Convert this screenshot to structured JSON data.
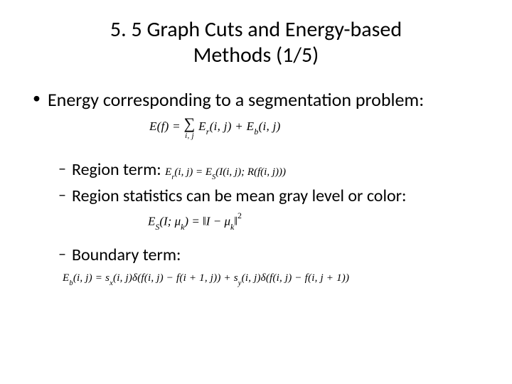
{
  "title_line1": "5. 5 Graph Cuts and Energy-based",
  "title_line2": "Methods (1/5)",
  "bullet1": "Energy corresponding to a segmentation problem:",
  "eq1_lhs": "E(f) =",
  "eq1_rhs": "E",
  "eq1_r": "r",
  "eq1_args": "(i, j) + E",
  "eq1_b": "b",
  "eq1_end": "(i, j)",
  "eq1_subscript": "i, j",
  "bullet2a": "Region term:",
  "eq2a_inline": "E",
  "eq2a_r": "r",
  "eq2a_mid": "(i, j) = E",
  "eq2a_S": "S",
  "eq2a_end": "(I(i, j); R(f(i, j)))",
  "bullet2b": "Region statistics can be mean gray level or color:",
  "eq2b_lhs": "E",
  "eq2b_S": "S",
  "eq2b_mid": "(I; μ",
  "eq2b_k": "k",
  "eq2b_eq": ") = ‖I − μ",
  "eq2b_k2": "k",
  "eq2b_end": "‖",
  "eq2b_sq": "2",
  "bullet2c": "Boundary term:",
  "eq3_p1": "E",
  "eq3_b": "b",
  "eq3_p2": "(i, j) = s",
  "eq3_x": "x",
  "eq3_p3": "(i, j)δ(f(i, j) − f(i + 1, j)) + s",
  "eq3_y": "y",
  "eq3_p4": "(i, j)δ(f(i, j) − f(i, j + 1))",
  "colors": {
    "text": "#000000",
    "background": "#ffffff"
  },
  "fonts": {
    "title_size": 30,
    "body_size": 26,
    "sub_body_size": 24,
    "eq_size": 17
  }
}
